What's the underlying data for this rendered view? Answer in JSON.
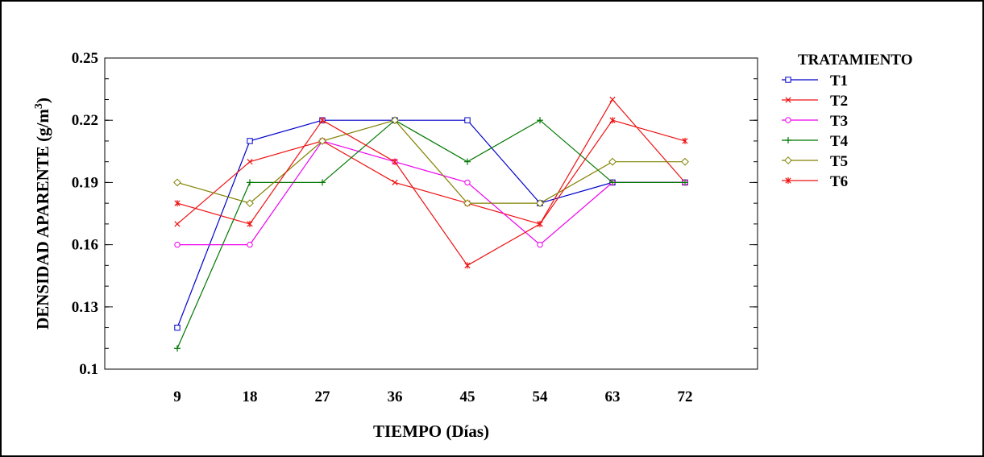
{
  "chart_data": {
    "type": "line",
    "title": "",
    "xlabel": "TIEMPO (Días)",
    "ylabel": "DENSIDAD APARENTE (g/m",
    "ylabel_sup": "3",
    "ylabel_close": ")",
    "x": [
      9,
      18,
      27,
      36,
      45,
      54,
      63,
      72
    ],
    "x_tick_labels": [
      "9",
      "18",
      "27",
      "36",
      "45",
      "54",
      "63",
      "72"
    ],
    "xlim": [
      0,
      81
    ],
    "ylim": [
      0.1,
      0.25
    ],
    "y_ticks": [
      0.1,
      0.13,
      0.16,
      0.19,
      0.22,
      0.25
    ],
    "y_tick_labels": [
      "0.1",
      "0.13",
      "0.16",
      "0.19",
      "0.22",
      "0.25"
    ],
    "grid": false,
    "legend": {
      "title": "TRATAMIENTO",
      "placement": "right"
    },
    "series": [
      {
        "name": "T1",
        "color": "#0000cc",
        "marker": "square",
        "values": [
          0.12,
          0.21,
          0.22,
          0.22,
          0.22,
          0.18,
          0.19,
          0.19
        ]
      },
      {
        "name": "T2",
        "color": "#ee1111",
        "marker": "x",
        "values": [
          0.17,
          0.2,
          0.21,
          0.19,
          0.18,
          0.17,
          0.23,
          0.19
        ]
      },
      {
        "name": "T3",
        "color": "#ee00ee",
        "marker": "circle",
        "values": [
          0.16,
          0.16,
          0.21,
          0.2,
          0.19,
          0.16,
          0.19,
          0.19
        ]
      },
      {
        "name": "T4",
        "color": "#007700",
        "marker": "plus",
        "values": [
          0.11,
          0.19,
          0.19,
          0.22,
          0.2,
          0.22,
          0.19,
          0.19
        ]
      },
      {
        "name": "T5",
        "color": "#808000",
        "marker": "diamond",
        "values": [
          0.19,
          0.18,
          0.21,
          0.22,
          0.18,
          0.18,
          0.2,
          0.2
        ]
      },
      {
        "name": "T6",
        "color": "#ee1111",
        "marker": "asterisk",
        "values": [
          0.18,
          0.17,
          0.22,
          0.2,
          0.15,
          0.17,
          0.22,
          0.21
        ]
      }
    ]
  }
}
